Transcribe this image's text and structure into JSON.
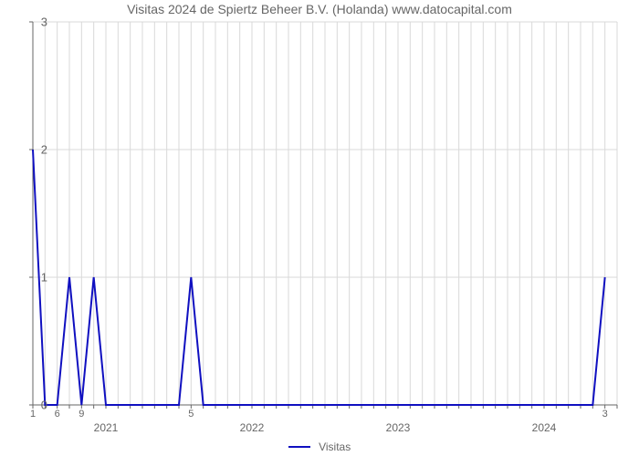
{
  "title": "Visitas 2024 de Spiertz Beheer B.V. (Holanda) www.datocapital.com",
  "chart": {
    "type": "line",
    "background_color": "#ffffff",
    "grid_color": "#d9d9d9",
    "axis_color": "#666666",
    "line_color": "#1010c0",
    "line_width": 2,
    "ylim": [
      0,
      3
    ],
    "yticks": [
      0,
      1,
      2,
      3
    ],
    "xlim_months": [
      0,
      48
    ],
    "year_ticks": [
      {
        "month_index": 6,
        "label": "2021"
      },
      {
        "month_index": 18,
        "label": "2022"
      },
      {
        "month_index": 30,
        "label": "2023"
      },
      {
        "month_index": 42,
        "label": "2024"
      }
    ],
    "minor_x_labels": [
      {
        "month_index": 0,
        "label": "1"
      },
      {
        "month_index": 2,
        "label": "6"
      },
      {
        "month_index": 4,
        "label": "9"
      },
      {
        "month_index": 13,
        "label": "5"
      },
      {
        "month_index": 47,
        "label": "3"
      }
    ],
    "series": {
      "name": "Visitas",
      "points": [
        {
          "x": 0,
          "y": 2
        },
        {
          "x": 1,
          "y": 0
        },
        {
          "x": 2,
          "y": 0
        },
        {
          "x": 3,
          "y": 1
        },
        {
          "x": 4,
          "y": 0
        },
        {
          "x": 5,
          "y": 1
        },
        {
          "x": 6,
          "y": 0
        },
        {
          "x": 7,
          "y": 0
        },
        {
          "x": 8,
          "y": 0
        },
        {
          "x": 9,
          "y": 0
        },
        {
          "x": 10,
          "y": 0
        },
        {
          "x": 11,
          "y": 0
        },
        {
          "x": 12,
          "y": 0
        },
        {
          "x": 13,
          "y": 1
        },
        {
          "x": 14,
          "y": 0
        },
        {
          "x": 15,
          "y": 0
        },
        {
          "x": 16,
          "y": 0
        },
        {
          "x": 17,
          "y": 0
        },
        {
          "x": 18,
          "y": 0
        },
        {
          "x": 19,
          "y": 0
        },
        {
          "x": 20,
          "y": 0
        },
        {
          "x": 21,
          "y": 0
        },
        {
          "x": 22,
          "y": 0
        },
        {
          "x": 23,
          "y": 0
        },
        {
          "x": 24,
          "y": 0
        },
        {
          "x": 25,
          "y": 0
        },
        {
          "x": 26,
          "y": 0
        },
        {
          "x": 27,
          "y": 0
        },
        {
          "x": 28,
          "y": 0
        },
        {
          "x": 29,
          "y": 0
        },
        {
          "x": 30,
          "y": 0
        },
        {
          "x": 31,
          "y": 0
        },
        {
          "x": 32,
          "y": 0
        },
        {
          "x": 33,
          "y": 0
        },
        {
          "x": 34,
          "y": 0
        },
        {
          "x": 35,
          "y": 0
        },
        {
          "x": 36,
          "y": 0
        },
        {
          "x": 37,
          "y": 0
        },
        {
          "x": 38,
          "y": 0
        },
        {
          "x": 39,
          "y": 0
        },
        {
          "x": 40,
          "y": 0
        },
        {
          "x": 41,
          "y": 0
        },
        {
          "x": 42,
          "y": 0
        },
        {
          "x": 43,
          "y": 0
        },
        {
          "x": 44,
          "y": 0
        },
        {
          "x": 45,
          "y": 0
        },
        {
          "x": 46,
          "y": 0
        },
        {
          "x": 47,
          "y": 1
        }
      ]
    }
  },
  "legend": {
    "label": "Visitas"
  }
}
